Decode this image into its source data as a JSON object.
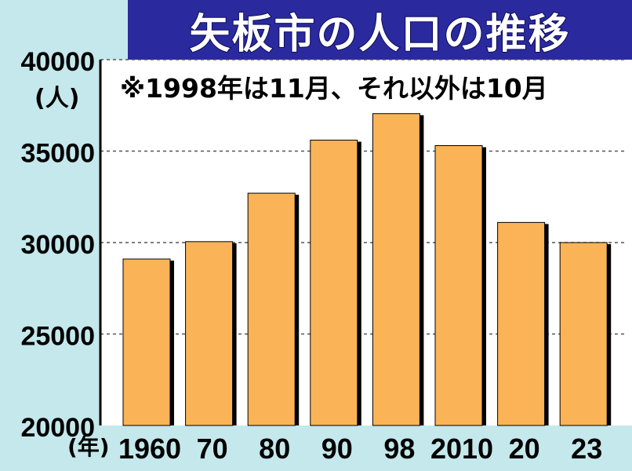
{
  "colors": {
    "background": "#c4e8ec",
    "title_background": "#2a2a9e",
    "title_text": "#ffffff",
    "bar_fill": "#fab457",
    "bar_shadow": "#000000",
    "grid": "#555555"
  },
  "chart_data": {
    "type": "bar",
    "title": "矢板市の人口の推移",
    "subtitle": "※1998年は11月、それ以外は10月",
    "y_unit_label": "(人)",
    "x_unit_label": "(年)",
    "categories": [
      "1960",
      "70",
      "80",
      "90",
      "98",
      "2010",
      "20",
      "23"
    ],
    "values": [
      29100,
      30050,
      32700,
      35600,
      37050,
      35300,
      31100,
      30000
    ],
    "ylim": [
      20000,
      40000
    ],
    "yticks": [
      "20000",
      "25000",
      "30000",
      "35000",
      "40000"
    ],
    "grid": "dashed horizontal",
    "legend": "none"
  }
}
